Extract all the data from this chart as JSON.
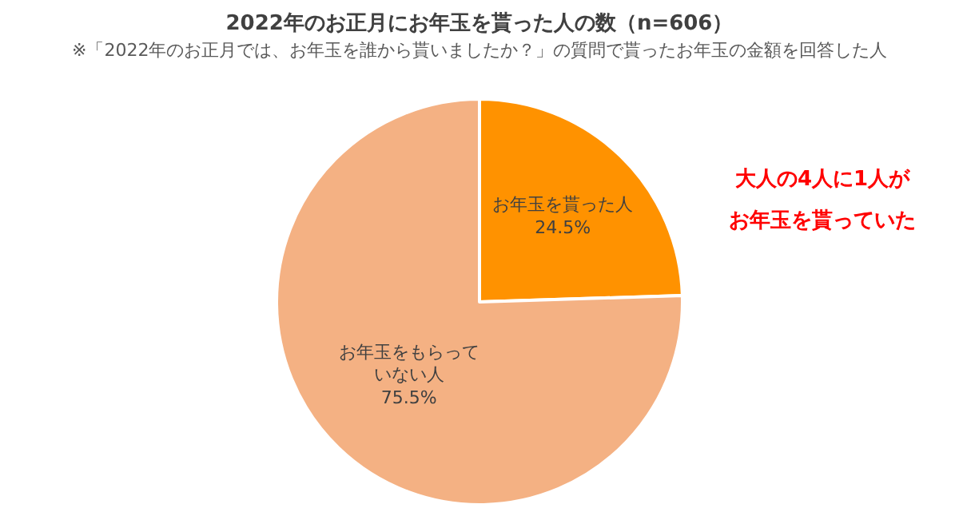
{
  "chart_data": {
    "type": "pie",
    "title": "2022年のお正月にお年玉を貰った人の数（n=606）",
    "subtitle": "※「2022年のお正月では、お年玉を誰から貰いましたか？」の質問で貰ったお年玉の金額を回答した人",
    "categories": [
      "お年玉を貰った人",
      "お年玉をもらっていない人"
    ],
    "values": [
      24.5,
      75.5
    ],
    "colors": [
      "#ff9200",
      "#f4b183"
    ],
    "value_labels": [
      "24.5%",
      "75.5%"
    ],
    "annotations": [
      "大人の4人に1人が",
      "お年玉を貰っていた"
    ],
    "legend": false
  }
}
